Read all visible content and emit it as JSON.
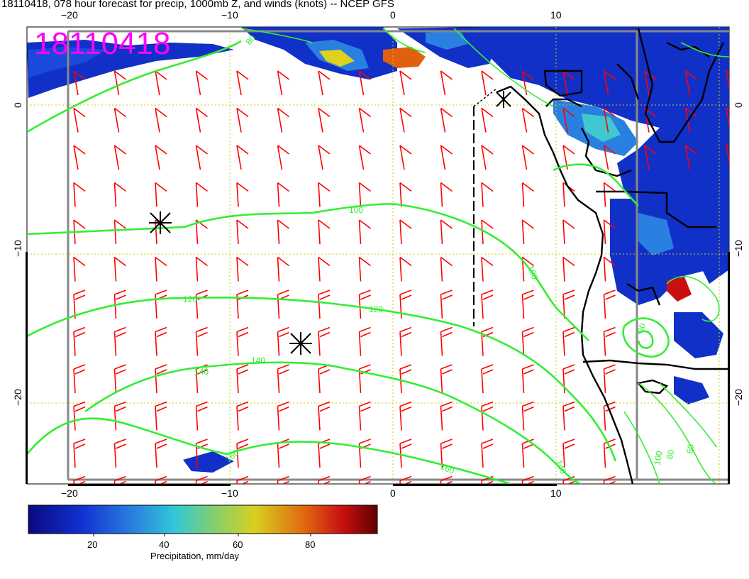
{
  "title": "18110418, 078 hour forecast for precip, 1000mb Z, and winds (knots) -- NCEP GFS",
  "stamp": "18110418",
  "axes": {
    "top_lon": [
      "−20",
      "−10",
      "0",
      "10"
    ],
    "bottom_lon": [
      "−20",
      "−10",
      "0",
      "10"
    ],
    "left_lat": [
      "0",
      "−10",
      "−20"
    ],
    "right_lat": [
      "0",
      "−10",
      "−20"
    ]
  },
  "contour_labels": {
    "c80": "80",
    "c100a": "100",
    "c100b": "100",
    "c120a": "120",
    "c120b": "120",
    "c140a": "140",
    "c140b": "140",
    "c160a": "160",
    "c160b": "160",
    "c60": "60",
    "c100c": "100",
    "c80b": "80",
    "c60b": "60",
    "c140c": "140"
  },
  "colorbar": {
    "ticks": [
      "20",
      "40",
      "60",
      "80"
    ],
    "label": "Precipitation, mm/day"
  },
  "colors": {
    "contour": "#33ee33",
    "wind_barb": "#ff0000",
    "stamp": "#ff00ff",
    "gridline": "#cccc00",
    "coastline": "#000000"
  },
  "icons": [
    "low-pressure-marker-icon",
    "high-pressure-marker-icon"
  ]
}
